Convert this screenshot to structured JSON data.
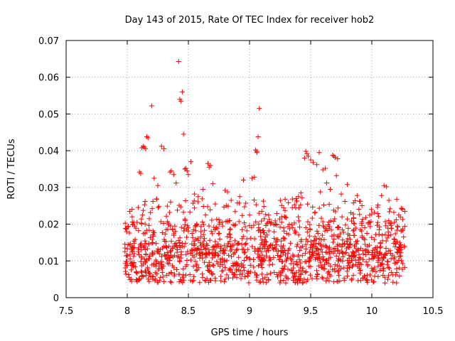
{
  "chart_data": {
    "type": "scatter",
    "title": "Day 143 of 2015, Rate Of TEC Index for receiver hob2",
    "xlabel": "GPS time / hours",
    "ylabel": "ROTI / TECUs",
    "xlim": [
      7.5,
      10.5
    ],
    "ylim": [
      0,
      0.07
    ],
    "x_ticks": [
      7.5,
      8,
      8.5,
      9,
      9.5,
      10,
      10.5
    ],
    "x_tick_labels": [
      "7.5",
      "8",
      "8.5",
      "9",
      "9.5",
      "10",
      "10.5"
    ],
    "y_ticks": [
      0,
      0.01,
      0.02,
      0.03,
      0.04,
      0.05,
      0.06,
      0.07
    ],
    "y_tick_labels": [
      "0",
      "0.01",
      "0.02",
      "0.03",
      "0.04",
      "0.05",
      "0.06",
      "0.07"
    ],
    "grid": true,
    "marker": "+",
    "series": [
      {
        "name": "ROTI",
        "color": "#ff0000",
        "x": [
          8.42,
          8.45,
          8.44,
          8.43,
          8.46,
          8.2,
          9.08,
          9.07,
          9.06,
          8.16,
          8.17,
          8.13,
          8.14,
          8.12,
          8.15,
          8.28,
          8.3,
          8.47,
          8.48,
          8.49,
          8.5,
          8.52,
          8.67,
          8.68,
          8.66,
          9.05,
          9.06,
          9.02,
          9.04,
          9.46,
          9.47,
          9.48,
          9.45,
          9.5,
          9.52,
          9.55,
          9.57,
          9.68,
          9.69,
          9.7,
          9.72,
          9.71,
          9.4,
          9.42,
          9.6,
          9.62,
          8.1,
          8.11,
          8.22,
          8.25,
          8.35,
          8.36,
          8.38,
          8.4,
          8.55,
          8.58,
          8.62,
          8.7,
          8.72,
          8.8,
          8.82,
          8.85,
          8.9,
          8.92,
          8.95,
          9.0,
          9.1,
          9.12,
          9.15,
          9.2,
          9.25,
          9.3,
          9.35,
          9.38,
          9.43,
          9.58,
          9.63,
          9.66,
          9.75,
          9.78,
          9.8,
          9.85,
          9.88,
          9.9,
          9.95,
          9.98,
          10.0,
          10.05,
          10.08,
          10.1,
          10.12,
          10.14,
          10.15,
          10.18,
          10.2,
          10.22,
          10.25,
          10.27,
          8.0,
          8.02,
          8.04,
          8.06,
          8.08,
          8.18,
          8.21,
          8.24,
          8.26,
          8.32,
          8.34,
          8.37,
          8.41,
          8.53,
          8.56,
          8.6,
          8.64,
          8.75,
          8.78,
          8.84,
          8.88,
          8.94,
          8.97,
          9.01,
          9.09,
          9.13,
          9.17,
          9.22,
          9.27,
          9.32,
          9.37,
          9.41,
          9.49,
          9.53,
          9.56,
          9.61,
          9.65,
          9.73,
          9.77,
          9.82,
          9.87,
          9.92,
          9.96,
          10.02,
          10.06,
          10.11,
          10.16,
          10.21,
          10.24,
          10.26
        ],
        "y": [
          0.0643,
          0.056,
          0.0535,
          0.054,
          0.0445,
          0.0522,
          0.0515,
          0.0438,
          0.0398,
          0.0438,
          0.0435,
          0.0412,
          0.041,
          0.0408,
          0.0405,
          0.0412,
          0.0405,
          0.035,
          0.0352,
          0.0345,
          0.0335,
          0.037,
          0.0355,
          0.036,
          0.0365,
          0.0402,
          0.0395,
          0.0325,
          0.0328,
          0.0398,
          0.0392,
          0.0385,
          0.038,
          0.0375,
          0.0368,
          0.0362,
          0.0395,
          0.0388,
          0.0385,
          0.0382,
          0.0378,
          0.0332,
          0.0275,
          0.0285,
          0.0348,
          0.0352,
          0.0342,
          0.0338,
          0.0325,
          0.0305,
          0.0342,
          0.0345,
          0.0335,
          0.0312,
          0.0282,
          0.0275,
          0.0295,
          0.031,
          0.0255,
          0.0292,
          0.0288,
          0.0265,
          0.0258,
          0.0275,
          0.032,
          0.0225,
          0.0235,
          0.0215,
          0.0205,
          0.0198,
          0.0192,
          0.0218,
          0.0245,
          0.027,
          0.0272,
          0.0288,
          0.0312,
          0.0295,
          0.0282,
          0.0262,
          0.0308,
          0.0258,
          0.0278,
          0.0262,
          0.0218,
          0.0205,
          0.0228,
          0.0252,
          0.0278,
          0.0305,
          0.0302,
          0.0265,
          0.0242,
          0.0232,
          0.0212,
          0.0225,
          0.0242,
          0.0235,
          0.0192,
          0.0235,
          0.022,
          0.0195,
          0.0205,
          0.0215,
          0.0262,
          0.0268,
          0.0248,
          0.0222,
          0.0198,
          0.0185,
          0.0238,
          0.0175,
          0.0182,
          0.0165,
          0.0225,
          0.0212,
          0.0195,
          0.0172,
          0.0155,
          0.0185,
          0.0148,
          0.0162,
          0.0178,
          0.0165,
          0.0142,
          0.0158,
          0.0135,
          0.0172,
          0.0182,
          0.0192,
          0.0168,
          0.0155,
          0.0175,
          0.0158,
          0.0188,
          0.0165,
          0.0178,
          0.0145,
          0.0152,
          0.0168,
          0.0175,
          0.0158,
          0.0185,
          0.0172,
          0.0188,
          0.0195,
          0.0182,
          0.0165
        ]
      }
    ]
  }
}
